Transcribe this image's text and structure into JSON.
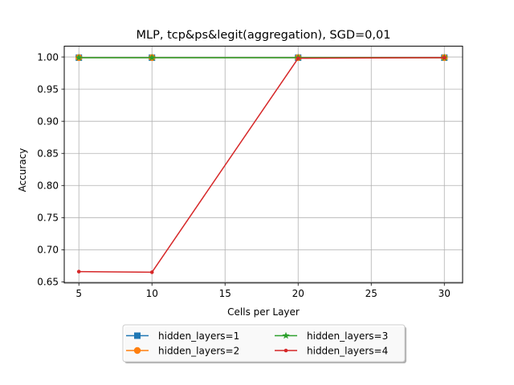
{
  "chart_data": {
    "type": "line",
    "title": "MLP, tcp&ps&legit(aggregation), SGD=0,01",
    "xlabel": "Cells per Layer",
    "ylabel": "Accuracy",
    "x": [
      5,
      10,
      20,
      30
    ],
    "xlim": [
      4,
      31.25
    ],
    "ylim": [
      0.6483,
      1.0168
    ],
    "xticks": [
      5,
      10,
      15,
      20,
      25,
      30
    ],
    "yticks": [
      0.65,
      0.7,
      0.75,
      0.8,
      0.85,
      0.9,
      0.95,
      1.0
    ],
    "xtick_labels": [
      "5",
      "10",
      "15",
      "20",
      "25",
      "30"
    ],
    "ytick_labels": [
      "0.65",
      "0.70",
      "0.75",
      "0.80",
      "0.85",
      "0.90",
      "0.95",
      "1.00"
    ],
    "grid": true,
    "legend_position": "below",
    "series": [
      {
        "name": "hidden_layers=1",
        "values": [
          0.999,
          0.999,
          0.999,
          0.999
        ],
        "color": "#1f77b4",
        "marker": "square"
      },
      {
        "name": "hidden_layers=2",
        "values": [
          0.999,
          0.999,
          0.999,
          0.999
        ],
        "color": "#ff7f0e",
        "marker": "circle"
      },
      {
        "name": "hidden_layers=3",
        "values": [
          0.999,
          0.999,
          0.999,
          0.999
        ],
        "color": "#2ca02c",
        "marker": "star"
      },
      {
        "name": "hidden_layers=4",
        "values": [
          0.666,
          0.665,
          0.998,
          0.999
        ],
        "color": "#d62728",
        "marker": "dot"
      }
    ]
  }
}
